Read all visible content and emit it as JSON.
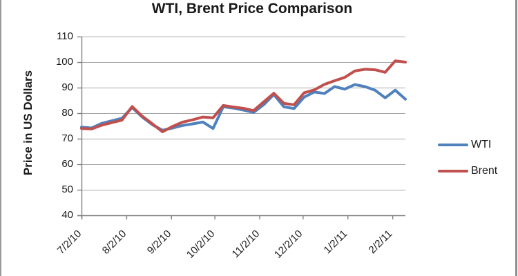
{
  "title": "WTI, Brent Price Comparison",
  "y_axis": {
    "title": "Price in US Dollars",
    "tick_labels": [
      "110",
      "100",
      "90",
      "80",
      "70",
      "60",
      "50",
      "40"
    ]
  },
  "x_axis": {
    "tick_labels": [
      "7/2/10",
      "8/2/10",
      "9/2/10",
      "10/2/10",
      "11/2/10",
      "12/2/10",
      "1/2/11",
      "2/2/11"
    ]
  },
  "legend": {
    "items": [
      {
        "label": "WTI",
        "color": "#4F81BD"
      },
      {
        "label": "Brent",
        "color": "#C0504D"
      }
    ]
  },
  "colors": {
    "wti": "#4F81BD",
    "brent": "#C0504D",
    "gridline": "#A6A6A6",
    "axis": "#7F7F7F",
    "text": "#1a1a1a"
  },
  "chart_data": {
    "type": "line",
    "title": "WTI, Brent Price Comparison",
    "xlabel": "",
    "ylabel": "Price in US Dollars",
    "ylim": [
      40,
      110
    ],
    "y_tick_step": 10,
    "grid": true,
    "legend_position": "right",
    "x": [
      "7/2/10",
      "7/9/10",
      "7/16/10",
      "7/23/10",
      "7/30/10",
      "8/6/10",
      "8/13/10",
      "8/20/10",
      "8/27/10",
      "9/3/10",
      "9/10/10",
      "9/17/10",
      "9/24/10",
      "10/1/10",
      "10/8/10",
      "10/15/10",
      "10/22/10",
      "10/29/10",
      "11/5/10",
      "11/12/10",
      "11/19/10",
      "11/26/10",
      "12/3/10",
      "12/10/10",
      "12/17/10",
      "12/24/10",
      "12/31/10",
      "1/7/11",
      "1/14/11",
      "1/21/11",
      "1/28/11",
      "2/4/11",
      "2/11/11"
    ],
    "xtick_labels": [
      "7/2/10",
      "8/2/10",
      "9/2/10",
      "10/2/10",
      "11/2/10",
      "12/2/10",
      "1/2/11",
      "2/2/11"
    ],
    "series": [
      {
        "name": "WTI",
        "color": "#4F81BD",
        "values": [
          74.5,
          74.2,
          76.0,
          77.0,
          78.0,
          82.2,
          78.5,
          75.5,
          73.3,
          74.2,
          75.2,
          75.8,
          76.5,
          74.0,
          82.5,
          82.0,
          81.2,
          80.3,
          83.3,
          87.3,
          82.5,
          81.8,
          86.3,
          88.3,
          87.7,
          90.4,
          89.4,
          91.2,
          90.4,
          89.0,
          86.0,
          89.0,
          85.5
        ]
      },
      {
        "name": "Brent",
        "color": "#C0504D",
        "values": [
          74.0,
          73.8,
          75.3,
          76.3,
          77.3,
          82.6,
          78.8,
          75.8,
          72.7,
          74.8,
          76.5,
          77.4,
          78.5,
          78.2,
          83.0,
          82.4,
          81.9,
          81.0,
          84.4,
          87.8,
          83.8,
          83.3,
          88.0,
          89.1,
          91.3,
          92.7,
          94.0,
          96.5,
          97.2,
          97.0,
          96.0,
          100.5,
          100.0
        ]
      }
    ]
  }
}
